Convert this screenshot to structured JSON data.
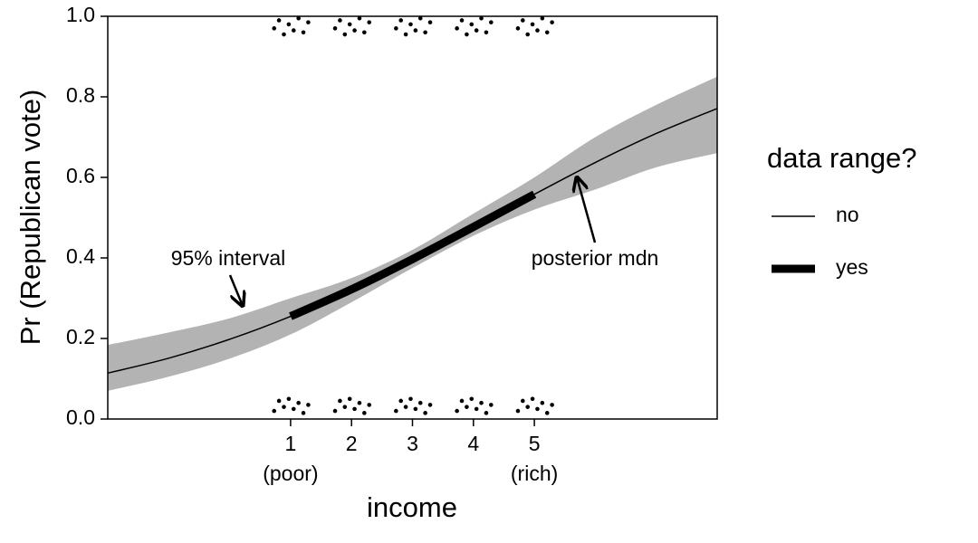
{
  "chart_data": {
    "type": "line",
    "x_label": "income",
    "y_label": "Pr (Republican vote)",
    "xlim": [
      -2,
      8
    ],
    "ylim": [
      0,
      1
    ],
    "xticks": [
      1,
      2,
      3,
      4,
      5
    ],
    "xtick_sublabels": [
      "(poor)",
      null,
      null,
      null,
      "(rich)"
    ],
    "yticks": [
      {
        "value": 0,
        "label": "0.0"
      },
      {
        "value": 0.2,
        "label": "0.2"
      },
      {
        "value": 0.4,
        "label": "0.4"
      },
      {
        "value": 0.6,
        "label": "0.6"
      },
      {
        "value": 0.8,
        "label": "0.8"
      },
      {
        "value": 1,
        "label": "1.0"
      }
    ],
    "x": [
      -2,
      -1,
      0,
      1,
      2,
      3,
      4,
      5,
      6,
      7,
      8
    ],
    "band": {
      "color": "#b3b3b3",
      "lower": [
        0.07,
        0.105,
        0.15,
        0.21,
        0.29,
        0.375,
        0.455,
        0.52,
        0.57,
        0.625,
        0.66
      ],
      "upper": [
        0.184,
        0.215,
        0.25,
        0.3,
        0.35,
        0.42,
        0.51,
        0.6,
        0.7,
        0.78,
        0.85
      ]
    },
    "legend_title": "data range?",
    "series": [
      {
        "name": "no",
        "color": "#000000",
        "linewidth": 1.5,
        "values": [
          0.114,
          0.151,
          0.198,
          0.255,
          0.322,
          0.397,
          0.477,
          0.558,
          0.637,
          0.709,
          0.771
        ]
      },
      {
        "name": "yes",
        "color": "#000000",
        "linewidth": 9,
        "values": [
          null,
          null,
          null,
          0.255,
          0.322,
          0.397,
          0.477,
          0.558,
          null,
          null,
          null
        ]
      }
    ],
    "points": {
      "color": "#000000",
      "x": [
        0.73,
        0.81,
        0.89,
        0.97,
        1.05,
        1.13,
        1.21,
        1.29,
        0.73,
        0.81,
        0.89,
        0.97,
        1.05,
        1.13,
        1.21,
        1.29,
        1.73,
        1.81,
        1.89,
        1.97,
        2.05,
        2.13,
        2.21,
        2.29,
        1.73,
        1.81,
        1.89,
        1.97,
        2.05,
        2.13,
        2.21,
        2.29,
        2.73,
        2.81,
        2.89,
        2.97,
        3.05,
        3.13,
        3.21,
        3.29,
        2.73,
        2.81,
        2.89,
        2.97,
        3.05,
        3.13,
        3.21,
        3.29,
        3.73,
        3.81,
        3.89,
        3.97,
        4.05,
        4.13,
        4.21,
        4.29,
        3.73,
        3.81,
        3.89,
        3.97,
        4.05,
        4.13,
        4.21,
        4.29,
        4.73,
        4.81,
        4.89,
        4.97,
        5.05,
        5.13,
        5.21,
        5.29,
        4.73,
        4.81,
        4.89,
        4.97,
        5.05,
        5.13,
        5.21,
        5.29
      ],
      "y": [
        0.02,
        0.045,
        0.03,
        0.05,
        0.025,
        0.04,
        0.015,
        0.035,
        0.97,
        0.99,
        0.955,
        0.98,
        0.965,
        0.995,
        0.96,
        0.985,
        0.02,
        0.045,
        0.03,
        0.05,
        0.025,
        0.04,
        0.015,
        0.035,
        0.97,
        0.99,
        0.955,
        0.98,
        0.965,
        0.995,
        0.96,
        0.985,
        0.02,
        0.045,
        0.03,
        0.05,
        0.025,
        0.04,
        0.015,
        0.035,
        0.97,
        0.99,
        0.955,
        0.98,
        0.965,
        0.995,
        0.96,
        0.985,
        0.02,
        0.045,
        0.03,
        0.05,
        0.025,
        0.04,
        0.015,
        0.035,
        0.97,
        0.99,
        0.955,
        0.98,
        0.965,
        0.995,
        0.96,
        0.985,
        0.02,
        0.045,
        0.03,
        0.05,
        0.025,
        0.04,
        0.015,
        0.035,
        0.97,
        0.99,
        0.955,
        0.98,
        0.965,
        0.995,
        0.96,
        0.985
      ]
    },
    "annotations": [
      "95% interval",
      "posterior mdn"
    ]
  }
}
